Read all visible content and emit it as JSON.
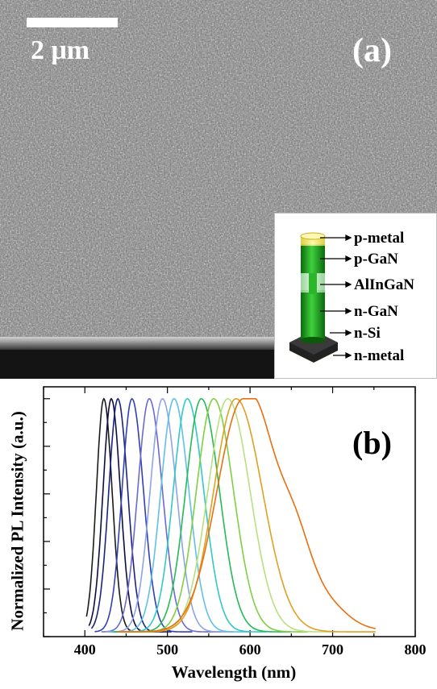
{
  "panel_a": {
    "scale_bar_label": "2 μm",
    "panel_label": "(a)",
    "inset": {
      "labels": [
        "p-metal",
        "p-GaN",
        "AlInGaN",
        "n-GaN",
        "n-Si",
        "n-metal"
      ]
    }
  },
  "panel_b": {
    "panel_label": "(b)"
  },
  "chart_data": {
    "type": "line",
    "xlabel": "Wavelength (nm)",
    "ylabel": "Normalized PL Intensity (a.u.)",
    "xlim": [
      350,
      800
    ],
    "ylim": [
      0,
      1.05
    ],
    "x_ticks": [
      400,
      500,
      600,
      700,
      800
    ],
    "grid": false,
    "series": [
      {
        "peak": 423,
        "left_width": 9,
        "right_width": 10,
        "x_start": 402,
        "x_end": 470,
        "color": "#1a1a1a"
      },
      {
        "peak": 432,
        "left_width": 10,
        "right_width": 11,
        "x_start": 405,
        "x_end": 495,
        "color": "#0d0d40"
      },
      {
        "peak": 440,
        "left_width": 11,
        "right_width": 12,
        "x_start": 408,
        "x_end": 505,
        "color": "#1a237e"
      },
      {
        "peak": 457,
        "left_width": 12,
        "right_width": 14,
        "x_start": 412,
        "x_end": 530,
        "color": "#3040b8"
      },
      {
        "peak": 478,
        "left_width": 14,
        "right_width": 16,
        "x_start": 420,
        "x_end": 565,
        "color": "#6a6ad0"
      },
      {
        "peak": 494,
        "left_width": 15,
        "right_width": 17,
        "x_start": 425,
        "x_end": 580,
        "color": "#8fa3e8"
      },
      {
        "peak": 508,
        "left_width": 16,
        "right_width": 18,
        "x_start": 430,
        "x_end": 600,
        "color": "#5fc0e8"
      },
      {
        "peak": 524,
        "left_width": 17,
        "right_width": 20,
        "x_start": 432,
        "x_end": 620,
        "color": "#30c8c8"
      },
      {
        "peak": 541,
        "left_width": 19,
        "right_width": 22,
        "x_start": 435,
        "x_end": 650,
        "color": "#22bb55"
      },
      {
        "peak": 556,
        "left_width": 21,
        "right_width": 24,
        "x_start": 440,
        "x_end": 670,
        "color": "#7ed040"
      },
      {
        "peak": 573,
        "left_width": 24,
        "right_width": 27,
        "x_start": 440,
        "x_end": 700,
        "color": "#b8e080"
      },
      {
        "peak": 583,
        "left_width": 27,
        "right_width": 32,
        "x_start": 440,
        "x_end": 752,
        "color": "#e0a020"
      },
      {
        "peak": 592,
        "left_width": 32,
        "right_width": 55,
        "x_start": 440,
        "x_end": 752,
        "color": "#e87010"
      }
    ]
  }
}
